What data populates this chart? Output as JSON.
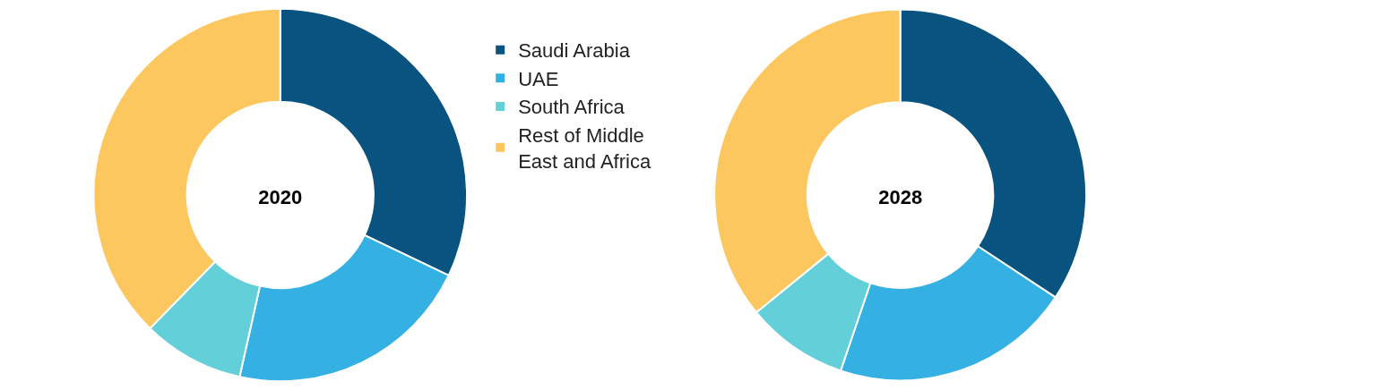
{
  "chart_data": {
    "type": "donut",
    "categories": [
      "Saudi Arabia",
      "UAE",
      "South Africa",
      "Rest of Middle East and Africa"
    ],
    "colors": [
      "#08537f",
      "#35b0e2",
      "#63cfd9",
      "#fdc75f"
    ],
    "legend": "right",
    "series": [
      {
        "name": "2020",
        "values": [
          32.1,
          21.4,
          8.8,
          37.7
        ]
      },
      {
        "name": "2028",
        "values": [
          34.3,
          20.9,
          8.9,
          35.9
        ]
      }
    ]
  }
}
